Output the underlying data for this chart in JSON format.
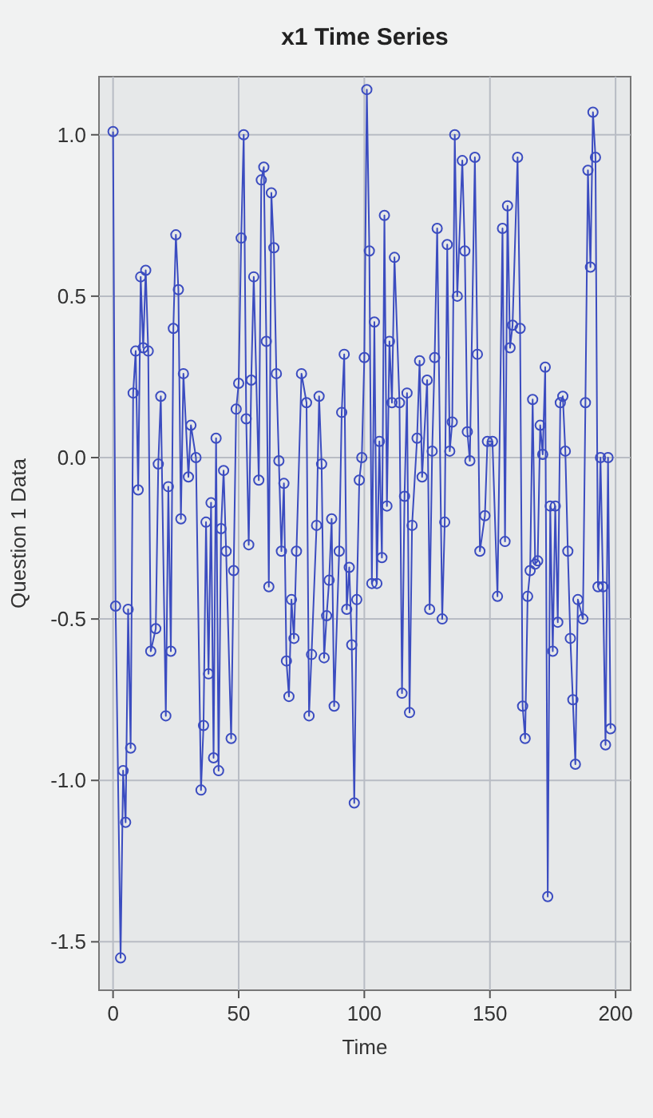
{
  "chart_data": {
    "type": "line",
    "title": "x1 Time Series",
    "xlabel": "Time",
    "ylabel": "Question 1 Data",
    "x": [
      0,
      1,
      3,
      4,
      5,
      6,
      7,
      8,
      9,
      10,
      11,
      12,
      13,
      14,
      15,
      17,
      18,
      19,
      21,
      22,
      23,
      24,
      25,
      26,
      27,
      28,
      30,
      31,
      33,
      35,
      36,
      37,
      38,
      39,
      40,
      41,
      42,
      43,
      44,
      45,
      47,
      48,
      49,
      50,
      51,
      52,
      53,
      54,
      55,
      56,
      58,
      59,
      60,
      61,
      62,
      63,
      64,
      65,
      66,
      67,
      68,
      69,
      70,
      71,
      72,
      73,
      75,
      77,
      78,
      79,
      81,
      82,
      83,
      84,
      85,
      86,
      87,
      88,
      90,
      91,
      92,
      93,
      94,
      95,
      96,
      97,
      98,
      99,
      100,
      101,
      102,
      103,
      104,
      105,
      106,
      107,
      108,
      109,
      110,
      111,
      112,
      114,
      115,
      116,
      117,
      118,
      119,
      121,
      122,
      123,
      125,
      126,
      127,
      128,
      129,
      131,
      132,
      133,
      134,
      135,
      136,
      137,
      139,
      140,
      141,
      142,
      144,
      145,
      146,
      148,
      149,
      151,
      153,
      155,
      156,
      157,
      158,
      159,
      161,
      162,
      163,
      164,
      165,
      166,
      167,
      168,
      169,
      170,
      171,
      172,
      173,
      174,
      175,
      176,
      177,
      178,
      179,
      180,
      181,
      182,
      183,
      184,
      185,
      187,
      188,
      189,
      190,
      191,
      192,
      193,
      194,
      195,
      196,
      197,
      198
    ],
    "values": [
      1.01,
      -0.46,
      -1.55,
      -0.97,
      -1.13,
      -0.47,
      -0.9,
      0.2,
      0.33,
      -0.1,
      0.56,
      0.34,
      0.58,
      0.33,
      -0.6,
      -0.53,
      -0.02,
      0.19,
      -0.8,
      -0.09,
      -0.6,
      0.4,
      0.69,
      0.52,
      -0.19,
      0.26,
      -0.06,
      0.1,
      0,
      -1.03,
      -0.83,
      -0.2,
      -0.67,
      -0.14,
      -0.93,
      0.06,
      -0.97,
      -0.22,
      -0.04,
      -0.29,
      -0.87,
      -0.35,
      0.15,
      0.23,
      0.68,
      1.0,
      0.12,
      -0.27,
      0.24,
      0.56,
      -0.07,
      0.86,
      0.9,
      0.36,
      -0.4,
      0.82,
      0.65,
      0.26,
      -0.01,
      -0.29,
      -0.08,
      -0.63,
      -0.74,
      -0.44,
      -0.56,
      -0.29,
      0.26,
      0.17,
      -0.8,
      -0.61,
      -0.21,
      0.19,
      -0.02,
      -0.62,
      -0.49,
      -0.38,
      -0.19,
      -0.77,
      -0.29,
      0.14,
      0.32,
      -0.47,
      -0.34,
      -0.58,
      -1.07,
      -0.44,
      -0.07,
      0,
      0.31,
      1.14,
      0.64,
      -0.39,
      0.42,
      -0.39,
      0.05,
      -0.31,
      0.75,
      -0.15,
      0.36,
      0.17,
      0.62,
      0.17,
      -0.73,
      -0.12,
      0.2,
      -0.79,
      -0.21,
      0.06,
      0.3,
      -0.06,
      0.24,
      -0.47,
      0.02,
      0.31,
      0.71,
      -0.5,
      -0.2,
      0.66,
      0.02,
      0.11,
      1.0,
      0.5,
      0.92,
      0.64,
      0.08,
      -0.01,
      0.93,
      0.32,
      -0.29,
      -0.18,
      0.05,
      0.05,
      -0.43,
      0.71,
      -0.26,
      0.78,
      0.34,
      0.41,
      0.93,
      0.4,
      -0.77,
      -0.87,
      -0.43,
      -0.35,
      0.18,
      -0.33,
      -0.32,
      0.1,
      0.01,
      0.28,
      -1.36,
      -0.15,
      -0.6,
      -0.15,
      -0.51,
      0.17,
      0.19,
      0.02,
      -0.29,
      -0.56,
      -0.75,
      -0.95,
      -0.44,
      -0.5,
      0.17,
      0.89,
      0.59,
      1.07,
      0.93,
      -0.4,
      0,
      -0.4,
      -0.89,
      0,
      -0.84
    ],
    "color": "#3b4cc0",
    "marker": "circle",
    "grid": true,
    "xlim": [
      -5.6,
      206
    ],
    "xticks": [
      0,
      50,
      100,
      150,
      200
    ],
    "ylim": [
      -1.65,
      1.18
    ],
    "yticks": [
      {
        "value": -1.5,
        "label": "-1.5"
      },
      {
        "value": -1,
        "label": "-1.0"
      },
      {
        "value": -0.5,
        "label": "-0.5"
      },
      {
        "value": 0,
        "label": "0.0"
      },
      {
        "value": 0.5,
        "label": "0.5"
      },
      {
        "value": 1,
        "label": "1.0"
      }
    ]
  }
}
